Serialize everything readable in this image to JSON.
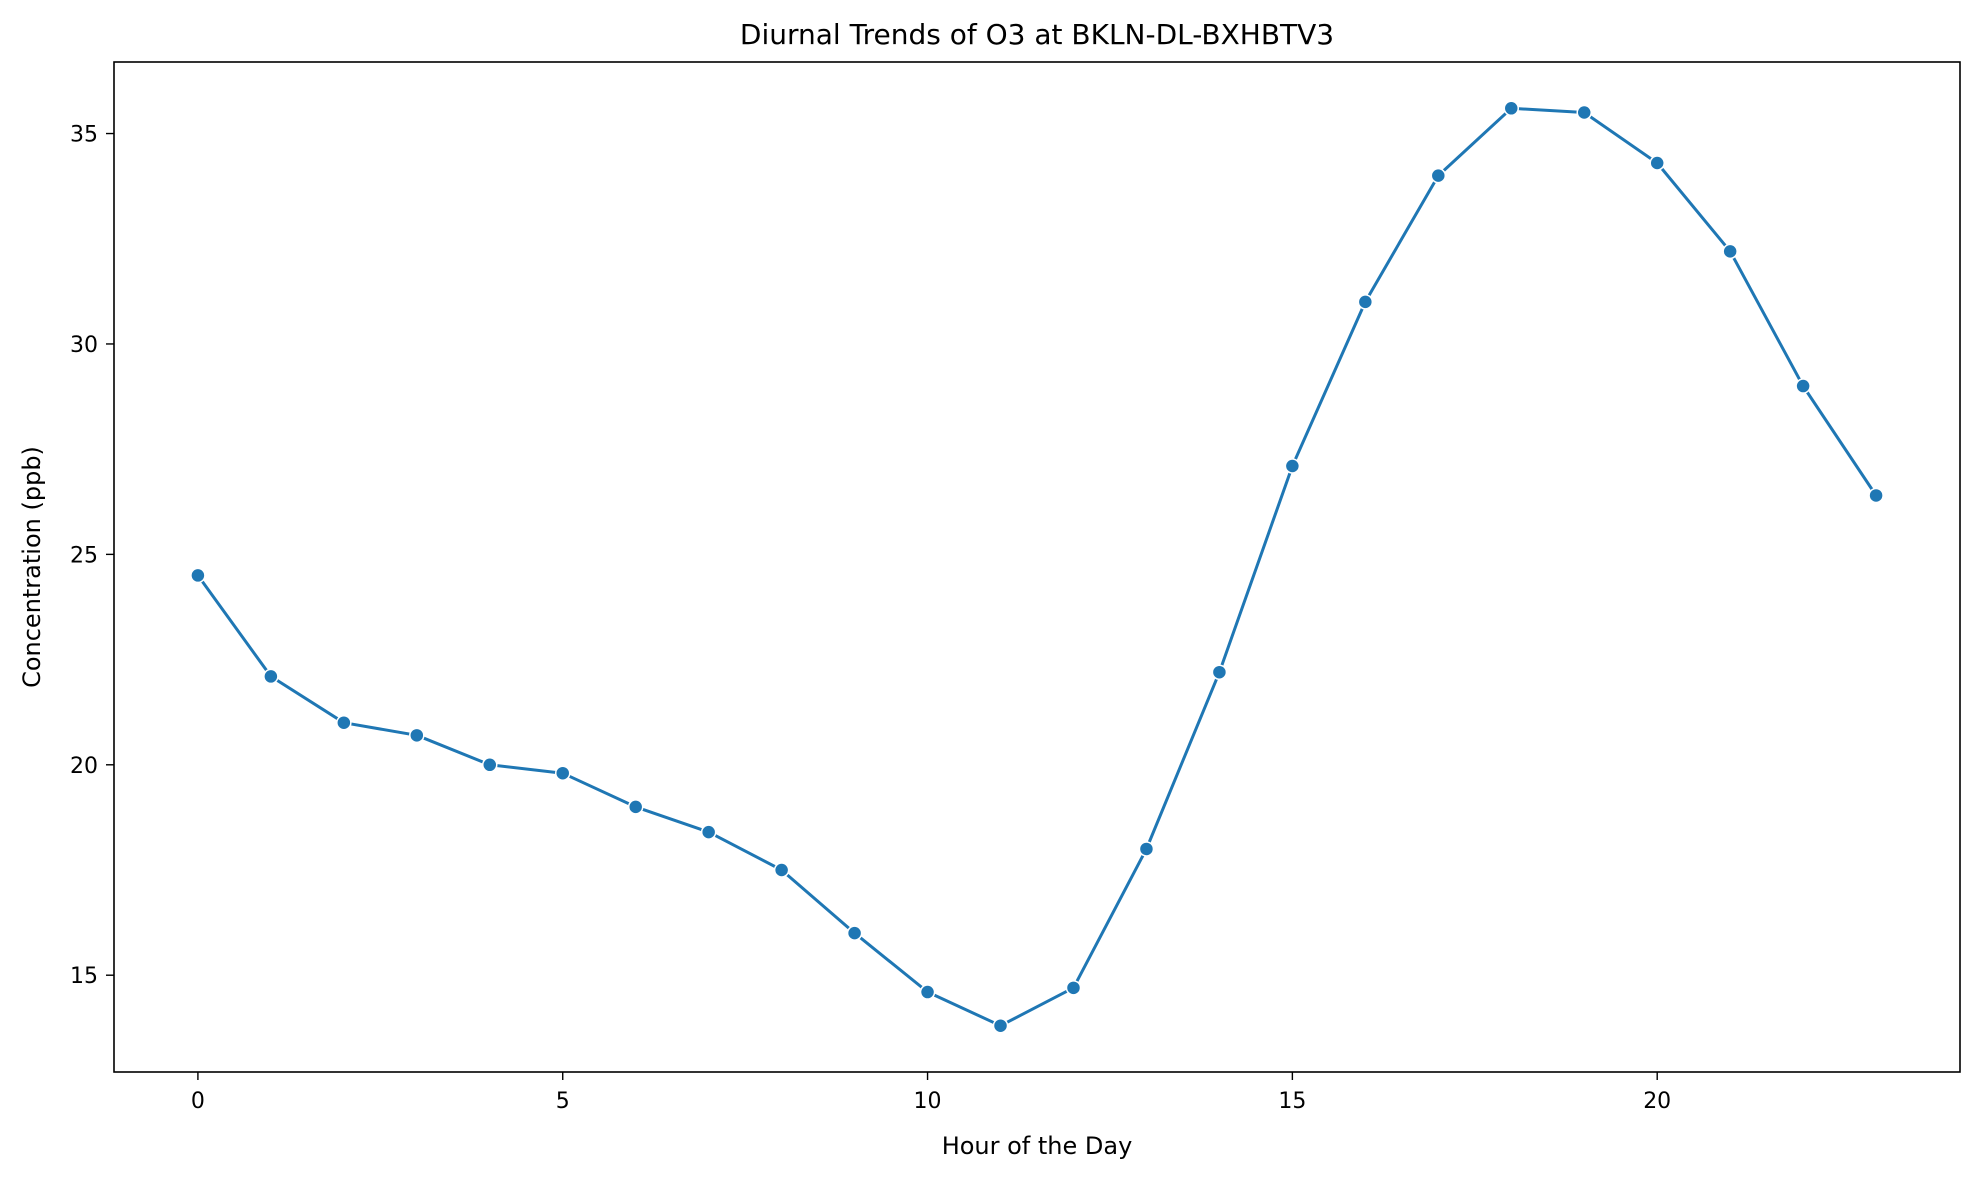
{
  "chart_data": {
    "type": "line",
    "title": "Diurnal Trends of O3 at BKLN-DL-BXHBTV3",
    "xlabel": "Hour of the Day",
    "ylabel": "Concentration (ppb)",
    "x": [
      0,
      1,
      2,
      3,
      4,
      5,
      6,
      7,
      8,
      9,
      10,
      11,
      12,
      13,
      14,
      15,
      16,
      17,
      18,
      19,
      20,
      21,
      22,
      23
    ],
    "series": [
      {
        "values": [
          24.5,
          22.1,
          21.0,
          20.7,
          20.0,
          19.8,
          19.0,
          18.4,
          17.5,
          16.0,
          14.6,
          13.8,
          14.7,
          18.0,
          22.2,
          27.1,
          31.0,
          34.0,
          35.6,
          35.5,
          34.3,
          32.2,
          29.0,
          26.4
        ],
        "color": "#1f77b4"
      }
    ],
    "xlim": [
      -1.15,
      24.15
    ],
    "ylim": [
      12.7,
      36.7
    ],
    "xticks": [
      0,
      5,
      10,
      15,
      20
    ],
    "yticks": [
      15,
      20,
      25,
      30,
      35
    ],
    "grid": false,
    "legend": "none"
  }
}
